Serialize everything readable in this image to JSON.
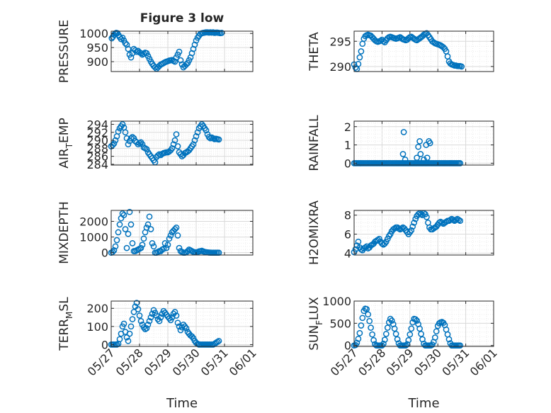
{
  "figure": {
    "title": "Figure 3 low"
  },
  "colors": {
    "marker": "#0072BD",
    "axis": "#262626",
    "grid": "#d9d9d9",
    "minor_grid": "#ececec"
  },
  "shared_x": {
    "label": "Time",
    "ticks": [
      "05/27",
      "05/28",
      "05/29",
      "05/30",
      "05/31",
      "06/01"
    ],
    "range_days": [
      27,
      32
    ]
  },
  "chart_data": [
    {
      "type": "scatter",
      "ylabel": "PRESSURE",
      "ylim": [
        865,
        1008
      ],
      "yticks": [
        900,
        950,
        1000
      ],
      "grid": true,
      "minor_grid": true,
      "x": [
        27.02,
        27.06,
        27.1,
        27.14,
        27.18,
        27.22,
        27.26,
        27.3,
        27.35,
        27.4,
        27.45,
        27.5,
        27.55,
        27.6,
        27.65,
        27.7,
        27.75,
        27.8,
        27.85,
        27.9,
        27.95,
        28.0,
        28.05,
        28.1,
        28.15,
        28.2,
        28.25,
        28.3,
        28.35,
        28.4,
        28.45,
        28.5,
        28.55,
        28.6,
        28.65,
        28.7,
        28.75,
        28.8,
        28.85,
        28.9,
        28.95,
        29.0,
        29.05,
        29.1,
        29.15,
        29.2,
        29.25,
        29.3,
        29.35,
        29.4,
        29.45,
        29.5,
        29.55,
        29.6,
        29.65,
        29.7,
        29.75,
        29.8,
        29.85,
        29.9,
        29.95,
        30.0,
        30.05,
        30.1,
        30.15,
        30.2,
        30.25,
        30.3,
        30.35,
        30.4,
        30.45,
        30.5,
        30.55,
        30.6,
        30.65,
        30.7,
        30.75,
        30.8,
        30.85,
        30.9
      ],
      "y": [
        983,
        988,
        995,
        1000,
        1002,
        1001,
        994,
        987,
        980,
        985,
        975,
        965,
        960,
        945,
        925,
        915,
        930,
        945,
        940,
        935,
        938,
        933,
        930,
        925,
        928,
        932,
        930,
        920,
        910,
        900,
        892,
        885,
        880,
        875,
        880,
        885,
        890,
        892,
        895,
        898,
        900,
        902,
        904,
        905,
        906,
        903,
        900,
        915,
        925,
        935,
        905,
        890,
        880,
        885,
        890,
        895,
        905,
        915,
        930,
        945,
        960,
        975,
        985,
        992,
        998,
        1001,
        1002,
        1003,
        1004,
        1004,
        1003,
        1004,
        1003,
        1004,
        1002,
        1003,
        1003,
        1002,
        1001,
        1002
      ]
    },
    {
      "type": "scatter",
      "ylabel": "THETA",
      "ylim": [
        289,
        297
      ],
      "yticks": [
        290,
        295
      ],
      "grid": true,
      "minor_grid": true,
      "x": [
        27.0,
        27.05,
        27.1,
        27.15,
        27.2,
        27.25,
        27.3,
        27.35,
        27.4,
        27.45,
        27.5,
        27.55,
        27.6,
        27.65,
        27.7,
        27.75,
        27.8,
        27.85,
        27.9,
        27.95,
        28.0,
        28.05,
        28.1,
        28.15,
        28.2,
        28.25,
        28.3,
        28.35,
        28.4,
        28.45,
        28.5,
        28.55,
        28.6,
        28.65,
        28.7,
        28.75,
        28.8,
        28.85,
        28.9,
        28.95,
        29.0,
        29.05,
        29.1,
        29.15,
        29.2,
        29.25,
        29.3,
        29.35,
        29.4,
        29.45,
        29.5,
        29.55,
        29.6,
        29.65,
        29.7,
        29.75,
        29.8,
        29.85,
        29.9,
        29.95,
        30.0,
        30.05,
        30.1,
        30.15,
        30.2,
        30.25,
        30.3,
        30.35,
        30.4,
        30.45,
        30.5,
        30.55,
        30.6,
        30.65,
        30.7,
        30.75,
        30.8,
        30.85
      ],
      "y": [
        290.4,
        289.8,
        289.5,
        290.5,
        291.8,
        293.0,
        294.5,
        295.5,
        296.0,
        296.2,
        296.3,
        296.2,
        296.1,
        295.8,
        295.5,
        295.2,
        295.0,
        294.9,
        295.0,
        295.1,
        295.3,
        295.0,
        294.8,
        295.2,
        295.6,
        295.8,
        295.9,
        295.8,
        295.7,
        295.6,
        295.5,
        295.6,
        295.7,
        295.8,
        295.6,
        295.4,
        295.3,
        295.2,
        295.3,
        295.6,
        295.8,
        295.9,
        295.7,
        295.5,
        295.3,
        295.2,
        295.4,
        295.6,
        295.8,
        296.0,
        296.3,
        296.5,
        296.6,
        296.2,
        295.8,
        295.4,
        295.0,
        294.8,
        294.6,
        294.5,
        294.4,
        294.3,
        294.2,
        294.0,
        293.8,
        293.5,
        293.0,
        292.0,
        291.0,
        290.6,
        290.4,
        290.3,
        290.2,
        290.2,
        290.1,
        290.1,
        290.1,
        290.0
      ]
    },
    {
      "type": "scatter",
      "ylabel": "AIR_TEMP",
      "ylim": [
        283.8,
        294.8
      ],
      "yticks": [
        284,
        286,
        288,
        290,
        292,
        294
      ],
      "grid": true,
      "minor_grid": true,
      "x": [
        27.0,
        27.05,
        27.1,
        27.15,
        27.2,
        27.25,
        27.3,
        27.35,
        27.4,
        27.45,
        27.5,
        27.55,
        27.6,
        27.65,
        27.7,
        27.75,
        27.8,
        27.85,
        27.9,
        27.95,
        28.0,
        28.05,
        28.1,
        28.15,
        28.2,
        28.25,
        28.3,
        28.35,
        28.4,
        28.45,
        28.5,
        28.55,
        28.6,
        28.65,
        28.7,
        28.75,
        28.8,
        28.85,
        28.9,
        28.95,
        29.0,
        29.05,
        29.1,
        29.15,
        29.2,
        29.25,
        29.3,
        29.35,
        29.4,
        29.45,
        29.5,
        29.55,
        29.6,
        29.65,
        29.7,
        29.75,
        29.8,
        29.85,
        29.9,
        29.95,
        30.0,
        30.05,
        30.1,
        30.15,
        30.2,
        30.25,
        30.3,
        30.35,
        30.4,
        30.45,
        30.5,
        30.55,
        30.6,
        30.65,
        30.7,
        30.75,
        30.8
      ],
      "y": [
        288.5,
        288.8,
        289.2,
        290.0,
        291.0,
        292.2,
        293.0,
        293.5,
        294.0,
        293.2,
        292.0,
        290.5,
        289.0,
        289.8,
        290.5,
        290.8,
        290.5,
        289.8,
        289.5,
        289.0,
        289.3,
        289.5,
        289.0,
        288.2,
        288.0,
        287.8,
        287.0,
        286.5,
        286.0,
        285.5,
        285.0,
        284.5,
        285.8,
        286.2,
        286.5,
        286.3,
        286.6,
        286.8,
        286.9,
        287.0,
        287.0,
        287.2,
        287.5,
        288.0,
        289.0,
        290.0,
        291.5,
        288.5,
        287.0,
        286.5,
        286.0,
        286.3,
        286.8,
        287.0,
        287.2,
        287.5,
        288.0,
        288.5,
        289.0,
        290.0,
        291.0,
        292.0,
        293.0,
        293.5,
        294.0,
        293.6,
        293.0,
        292.5,
        291.5,
        290.8,
        290.5,
        290.7,
        290.5,
        290.3,
        290.4,
        290.3,
        290.2
      ]
    },
    {
      "type": "scatter",
      "ylabel": "RAINFALL",
      "ylim": [
        -0.1,
        2.3
      ],
      "yticks": [
        0,
        1,
        2
      ],
      "grid": true,
      "minor_grid": true,
      "x": [
        27.0,
        27.05,
        27.1,
        27.15,
        27.2,
        27.25,
        27.3,
        27.35,
        27.4,
        27.45,
        27.5,
        27.55,
        27.6,
        27.65,
        27.7,
        27.75,
        27.8,
        27.85,
        27.9,
        27.95,
        28.0,
        28.05,
        28.1,
        28.15,
        28.2,
        28.25,
        28.3,
        28.35,
        28.4,
        28.45,
        28.5,
        28.55,
        28.6,
        28.65,
        28.7,
        28.75,
        28.8,
        28.85,
        28.9,
        28.95,
        29.0,
        29.05,
        29.1,
        29.15,
        29.2,
        29.25,
        29.3,
        29.35,
        29.4,
        29.45,
        29.5,
        29.55,
        29.6,
        29.65,
        29.7,
        29.75,
        29.8,
        29.85,
        29.9,
        29.95,
        30.0,
        30.05,
        30.1,
        30.15,
        30.2,
        30.25,
        30.3,
        30.35,
        30.4,
        30.45,
        30.5,
        30.55,
        30.6,
        30.65,
        30.7,
        30.75,
        30.8,
        28.75,
        28.78,
        28.83,
        29.25,
        29.3,
        29.35,
        29.38,
        29.5,
        29.58,
        29.62,
        29.68,
        29.72
      ],
      "y": [
        0,
        0,
        0,
        0,
        0,
        0,
        0,
        0,
        0,
        0,
        0,
        0,
        0,
        0,
        0,
        0,
        0,
        0,
        0,
        0,
        0,
        0,
        0,
        0,
        0,
        0,
        0,
        0,
        0,
        0,
        0,
        0,
        0,
        0,
        0,
        0,
        0,
        0,
        0,
        0,
        0,
        0,
        0,
        0,
        0,
        0,
        0,
        0,
        0,
        0,
        0,
        0,
        0,
        0,
        0,
        0,
        0,
        0,
        0,
        0,
        0,
        0,
        0,
        0,
        0,
        0,
        0,
        0,
        0,
        0,
        0,
        0,
        0,
        0,
        0,
        0,
        0,
        0.5,
        1.7,
        0.2,
        0.3,
        0.9,
        1.2,
        0.5,
        0.2,
        1.0,
        0.3,
        1.2,
        1.1
      ]
    },
    {
      "type": "scatter",
      "ylabel": "MIXDEPTH",
      "ylim": [
        -150,
        2700
      ],
      "yticks": [
        0,
        1000,
        2000
      ],
      "grid": true,
      "minor_grid": true,
      "x": [
        27.0,
        27.05,
        27.1,
        27.15,
        27.2,
        27.25,
        27.3,
        27.35,
        27.4,
        27.45,
        27.5,
        27.55,
        27.6,
        27.65,
        27.7,
        27.75,
        27.8,
        27.85,
        27.9,
        27.95,
        28.0,
        28.05,
        28.1,
        28.15,
        28.2,
        28.25,
        28.3,
        28.35,
        28.4,
        28.45,
        28.5,
        28.55,
        28.6,
        28.65,
        28.7,
        28.75,
        28.8,
        28.85,
        28.9,
        28.95,
        29.0,
        29.05,
        29.1,
        29.15,
        29.2,
        29.25,
        29.3,
        29.35,
        29.4,
        29.45,
        29.5,
        29.55,
        29.6,
        29.65,
        29.7,
        29.75,
        29.8,
        29.85,
        29.9,
        29.95,
        30.0,
        30.05,
        30.1,
        30.15,
        30.2,
        30.25,
        30.3,
        30.35,
        30.4,
        30.45,
        30.5,
        30.55,
        30.6,
        30.65,
        30.7,
        30.75,
        30.8
      ],
      "y": [
        0,
        50,
        150,
        400,
        800,
        1300,
        1800,
        2200,
        2500,
        2400,
        1500,
        300,
        1200,
        2600,
        1800,
        600,
        100,
        100,
        150,
        200,
        250,
        300,
        500,
        900,
        1300,
        1600,
        1800,
        2300,
        1500,
        600,
        400,
        0,
        0,
        50,
        100,
        100,
        200,
        250,
        600,
        300,
        500,
        900,
        1100,
        1300,
        1400,
        1500,
        1600,
        1100,
        300,
        100,
        50,
        0,
        0,
        20,
        100,
        200,
        150,
        100,
        50,
        30,
        20,
        40,
        80,
        100,
        120,
        80,
        50,
        30,
        20,
        10,
        5,
        0,
        0,
        0,
        0,
        0,
        0
      ]
    },
    {
      "type": "scatter",
      "ylabel": "H2OMIXRA",
      "ylim": [
        3.8,
        8.5
      ],
      "yticks": [
        4,
        6,
        8
      ],
      "grid": true,
      "minor_grid": true,
      "x": [
        27.0,
        27.05,
        27.1,
        27.15,
        27.2,
        27.25,
        27.3,
        27.35,
        27.4,
        27.45,
        27.5,
        27.55,
        27.6,
        27.65,
        27.7,
        27.75,
        27.8,
        27.85,
        27.9,
        27.95,
        28.0,
        28.05,
        28.1,
        28.15,
        28.2,
        28.25,
        28.3,
        28.35,
        28.4,
        28.45,
        28.5,
        28.55,
        28.6,
        28.65,
        28.7,
        28.75,
        28.8,
        28.85,
        28.9,
        28.95,
        29.0,
        29.05,
        29.1,
        29.15,
        29.2,
        29.25,
        29.3,
        29.35,
        29.4,
        29.45,
        29.5,
        29.55,
        29.6,
        29.65,
        29.7,
        29.75,
        29.8,
        29.85,
        29.9,
        29.95,
        30.0,
        30.05,
        30.1,
        30.15,
        30.2,
        30.25,
        30.3,
        30.35,
        30.4,
        30.45,
        30.5,
        30.55,
        30.6,
        30.65,
        30.7,
        30.75,
        30.8
      ],
      "y": [
        4.1,
        4.4,
        4.8,
        5.2,
        4.6,
        4.4,
        4.3,
        4.5,
        4.6,
        4.7,
        4.5,
        4.6,
        4.8,
        4.9,
        5.0,
        5.2,
        5.3,
        5.4,
        5.5,
        5.2,
        5.0,
        4.9,
        5.0,
        5.2,
        5.5,
        5.8,
        6.0,
        6.3,
        6.5,
        6.6,
        6.7,
        6.7,
        6.6,
        6.5,
        6.6,
        6.7,
        6.6,
        6.4,
        6.2,
        6.0,
        6.2,
        6.4,
        6.8,
        7.2,
        7.6,
        7.9,
        8.1,
        8.2,
        8.1,
        8.0,
        8.2,
        8.1,
        7.8,
        7.2,
        6.7,
        6.5,
        6.5,
        6.6,
        6.7,
        6.8,
        7.0,
        7.2,
        7.3,
        7.2,
        7.1,
        7.2,
        7.3,
        7.4,
        7.4,
        7.5,
        7.6,
        7.5,
        7.4,
        7.5,
        7.6,
        7.5,
        7.4
      ]
    },
    {
      "type": "scatter",
      "ylabel": "TERR_MSL",
      "ylim": [
        -10,
        240
      ],
      "yticks": [
        0,
        100,
        200
      ],
      "grid": true,
      "minor_grid": true,
      "x": [
        27.0,
        27.05,
        27.1,
        27.15,
        27.2,
        27.25,
        27.3,
        27.35,
        27.4,
        27.45,
        27.5,
        27.55,
        27.6,
        27.65,
        27.7,
        27.75,
        27.8,
        27.85,
        27.9,
        27.95,
        28.0,
        28.05,
        28.1,
        28.15,
        28.2,
        28.25,
        28.3,
        28.35,
        28.4,
        28.45,
        28.5,
        28.55,
        28.6,
        28.65,
        28.7,
        28.75,
        28.8,
        28.85,
        28.9,
        28.95,
        29.0,
        29.05,
        29.1,
        29.15,
        29.2,
        29.25,
        29.3,
        29.35,
        29.4,
        29.45,
        29.5,
        29.55,
        29.6,
        29.65,
        29.7,
        29.75,
        29.8,
        29.85,
        29.9,
        29.95,
        30.0,
        30.05,
        30.1,
        30.15,
        30.2,
        30.25,
        30.3,
        30.35,
        30.4,
        30.45,
        30.5,
        30.55,
        30.6,
        30.65,
        30.7,
        30.75,
        30.8
      ],
      "y": [
        0,
        0,
        0,
        0,
        0,
        5,
        30,
        60,
        100,
        115,
        70,
        40,
        20,
        60,
        100,
        140,
        180,
        210,
        230,
        195,
        160,
        130,
        110,
        95,
        85,
        90,
        110,
        130,
        150,
        170,
        190,
        175,
        160,
        140,
        130,
        150,
        170,
        185,
        175,
        165,
        155,
        145,
        135,
        150,
        170,
        180,
        160,
        120,
        100,
        80,
        95,
        110,
        100,
        90,
        70,
        60,
        50,
        45,
        35,
        20,
        10,
        5,
        0,
        0,
        0,
        0,
        0,
        0,
        0,
        0,
        0,
        0,
        0,
        5,
        10,
        15,
        20
      ]
    },
    {
      "type": "scatter",
      "ylabel": "SUN_FLUX",
      "ylim": [
        -20,
        1000
      ],
      "yticks": [
        0,
        500,
        1000
      ],
      "grid": true,
      "minor_grid": true,
      "x": [
        27.0,
        27.05,
        27.1,
        27.15,
        27.2,
        27.25,
        27.3,
        27.35,
        27.4,
        27.45,
        27.5,
        27.55,
        27.6,
        27.65,
        27.7,
        27.75,
        27.8,
        27.85,
        27.9,
        27.95,
        28.0,
        28.05,
        28.1,
        28.15,
        28.2,
        28.25,
        28.3,
        28.35,
        28.4,
        28.45,
        28.5,
        28.55,
        28.6,
        28.65,
        28.7,
        28.75,
        28.8,
        28.85,
        28.9,
        28.95,
        29.0,
        29.05,
        29.1,
        29.15,
        29.2,
        29.25,
        29.3,
        29.35,
        29.4,
        29.45,
        29.5,
        29.55,
        29.6,
        29.65,
        29.7,
        29.75,
        29.8,
        29.85,
        29.9,
        29.95,
        30.0,
        30.05,
        30.1,
        30.15,
        30.2,
        30.25,
        30.3,
        30.35,
        30.4,
        30.45,
        30.5,
        30.55,
        30.6,
        30.65,
        30.7,
        30.75,
        30.8
      ],
      "y": [
        0,
        10,
        60,
        150,
        280,
        450,
        620,
        780,
        830,
        820,
        700,
        550,
        400,
        250,
        120,
        30,
        0,
        0,
        0,
        0,
        0,
        40,
        130,
        260,
        400,
        520,
        600,
        560,
        480,
        380,
        260,
        140,
        50,
        0,
        0,
        0,
        0,
        0,
        30,
        120,
        250,
        380,
        520,
        600,
        590,
        560,
        480,
        380,
        260,
        140,
        40,
        0,
        0,
        0,
        0,
        0,
        20,
        80,
        180,
        320,
        440,
        500,
        520,
        530,
        510,
        460,
        360,
        250,
        140,
        50,
        0,
        0,
        0,
        0,
        0,
        0,
        0
      ]
    }
  ]
}
